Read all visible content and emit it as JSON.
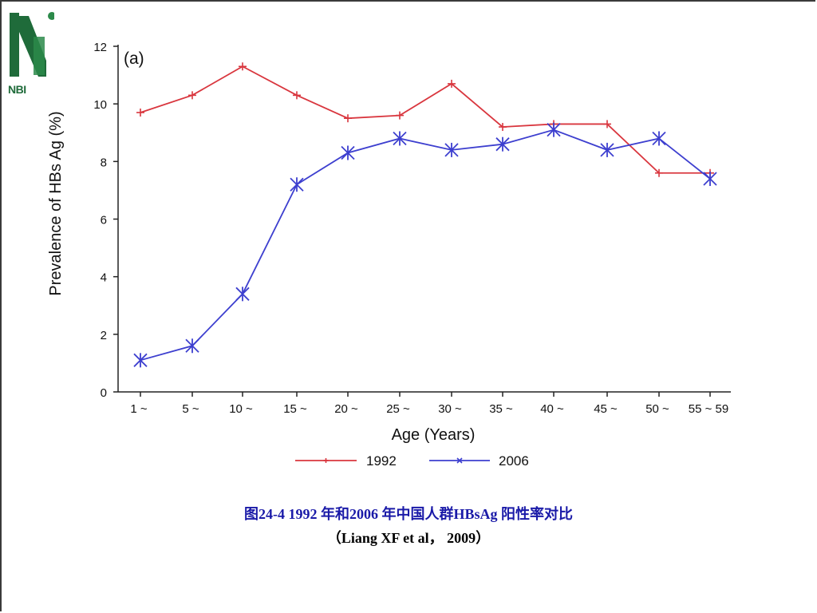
{
  "logo": {
    "text": "NBI"
  },
  "caption": {
    "line1": "图24-4   1992 年和2006 年中国人群HBsAg 阳性率对比",
    "line2": "（Liang XF et al， 2009）"
  },
  "colors": {
    "series_1992": "#d9363e",
    "series_2006": "#3d3fcf",
    "logo": "#1f6b3a"
  },
  "chart_data": {
    "type": "line",
    "panel_label": "(a)",
    "xlabel": "Age (Years)",
    "ylabel": "Prevalence of HBs Ag (%)",
    "ylim": [
      0,
      12
    ],
    "yticks": [
      0,
      2,
      4,
      6,
      8,
      10,
      12
    ],
    "categories": [
      "1 ~",
      "5 ~",
      "10 ~",
      "15 ~",
      "20 ~",
      "25 ~",
      "30 ~",
      "35 ~",
      "40 ~",
      "45 ~",
      "50 ~",
      "55 ~ 59"
    ],
    "series": [
      {
        "name": "1992",
        "marker": "plus",
        "color": "#d9363e",
        "values": [
          9.7,
          10.3,
          11.3,
          10.3,
          9.5,
          9.6,
          10.7,
          9.2,
          9.3,
          9.3,
          7.6,
          7.6
        ]
      },
      {
        "name": "2006",
        "marker": "asterisk",
        "color": "#3d3fcf",
        "values": [
          1.1,
          1.6,
          3.4,
          7.2,
          8.3,
          8.8,
          8.4,
          8.6,
          9.1,
          8.4,
          8.8,
          7.4
        ]
      }
    ],
    "legend_position": "bottom"
  }
}
